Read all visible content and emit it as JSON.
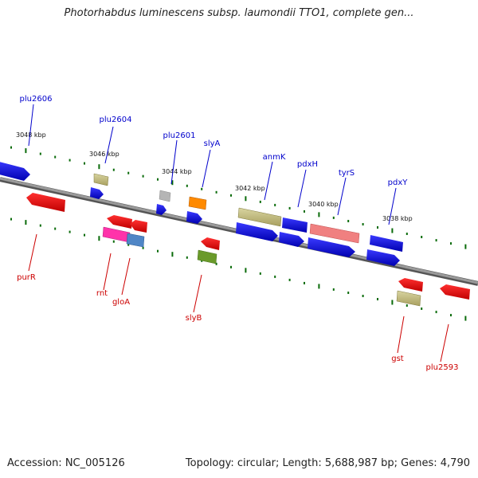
{
  "map": {
    "title": "Photorhabdus luminescens subsp. laumondii TTO1, complete gen...",
    "accession": "Accession: NC_005126",
    "summary": "Topology: circular; Length: 5,688,987 bp; Genes: 4,790"
  },
  "colors": {
    "forward_label": "#0000cc",
    "reverse_label": "#cc0000",
    "ticks": "#0a6b0a",
    "backbone": "#7a7a7a"
  },
  "scale_labels": [
    "3048 kbp",
    "3046 kbp",
    "3044 kbp",
    "3042 kbp",
    "3040 kbp",
    "3038 kbp"
  ],
  "forward_genes": [
    "plu2606",
    "plu2604",
    "plu2601",
    "slyA",
    "anmK",
    "pdxH",
    "tyrS",
    "pdxY"
  ],
  "reverse_genes": [
    "purR",
    "rnt",
    "gloA",
    "slyB",
    "gst",
    "plu2593"
  ]
}
